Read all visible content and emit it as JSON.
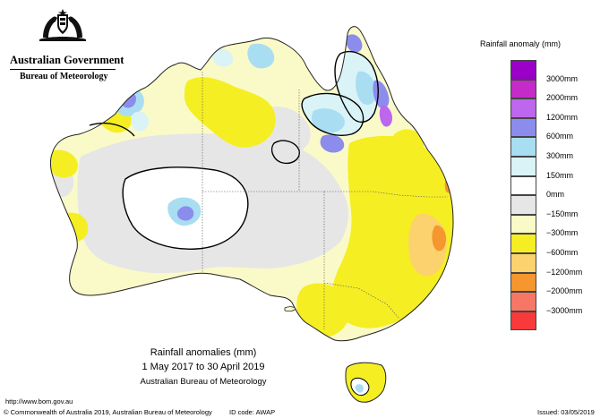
{
  "header": {
    "org": "Australian Government",
    "bureau": "Bureau of Meteorology"
  },
  "legend": {
    "title": "Rainfall anomaly (mm)",
    "items": [
      {
        "label": "3000mm",
        "color": "#9b00c8"
      },
      {
        "label": "2000mm",
        "color": "#c42bc8"
      },
      {
        "label": "1200mm",
        "color": "#bd66ee"
      },
      {
        "label": "600mm",
        "color": "#8c8ced"
      },
      {
        "label": "300mm",
        "color": "#a9def2"
      },
      {
        "label": "150mm",
        "color": "#d9f3f6"
      },
      {
        "label": "0mm",
        "color": "#ffffff"
      },
      {
        "label": "−150mm",
        "color": "#e6e6e6"
      },
      {
        "label": "−300mm",
        "color": "#fafac8"
      },
      {
        "label": "−600mm",
        "color": "#f5ee23"
      },
      {
        "label": "−1200mm",
        "color": "#fbd26e"
      },
      {
        "label": "−2000mm",
        "color": "#f5962e"
      },
      {
        "label": "−3000mm",
        "color": "#f77766"
      },
      {
        "label": "",
        "color": "#f93a3a"
      }
    ]
  },
  "caption": {
    "title": "Rainfall anomalies (mm)",
    "range": "1 May 2017 to 30 April 2019",
    "source": "Australian Bureau of Meteorology"
  },
  "footer": {
    "url": "http://www.bom.gov.au",
    "copyright": "© Commonwealth of Australia 2019, Australian Bureau of Meteorology",
    "id_code": "ID code: AWAP",
    "issued": "Issued: 03/05/2019"
  }
}
